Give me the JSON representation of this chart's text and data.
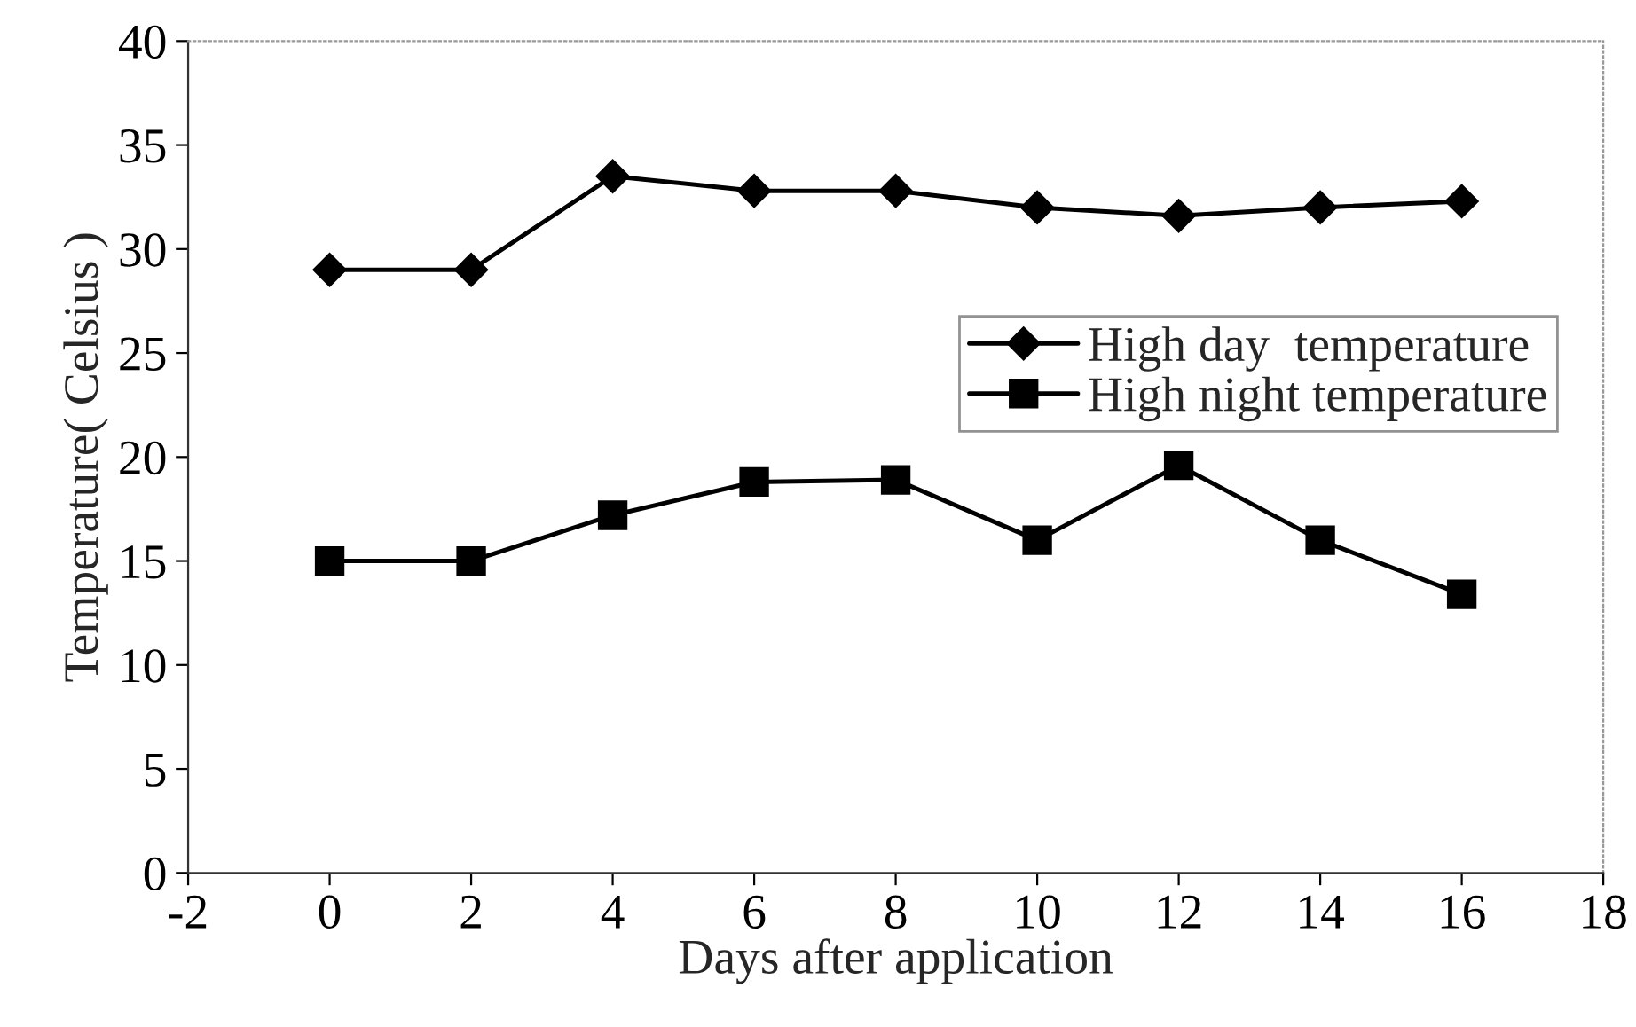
{
  "chart_data": {
    "type": "line",
    "xlabel": "Days after application",
    "ylabel": "Temperature( Celsius )",
    "x": [
      0,
      2,
      4,
      6,
      8,
      10,
      12,
      14,
      16
    ],
    "series": [
      {
        "name": "High day  temperature",
        "color": "#000000",
        "marker": "diamond",
        "values": [
          29.0,
          29.0,
          33.5,
          32.8,
          32.8,
          32.0,
          31.6,
          32.0,
          32.3
        ]
      },
      {
        "name": "High night temperature",
        "color": "#000000",
        "marker": "square",
        "values": [
          15.0,
          15.0,
          17.2,
          18.8,
          18.9,
          16.0,
          19.6,
          16.0,
          13.4
        ]
      }
    ],
    "xlim": [
      -2,
      18
    ],
    "xticks": [
      -2,
      0,
      2,
      4,
      6,
      8,
      10,
      12,
      14,
      16,
      18
    ],
    "ylim": [
      0,
      40
    ],
    "yticks": [
      0,
      5,
      10,
      15,
      20,
      25,
      30,
      35,
      40
    ],
    "grid": false,
    "legend": "right",
    "line_style": "solid"
  }
}
